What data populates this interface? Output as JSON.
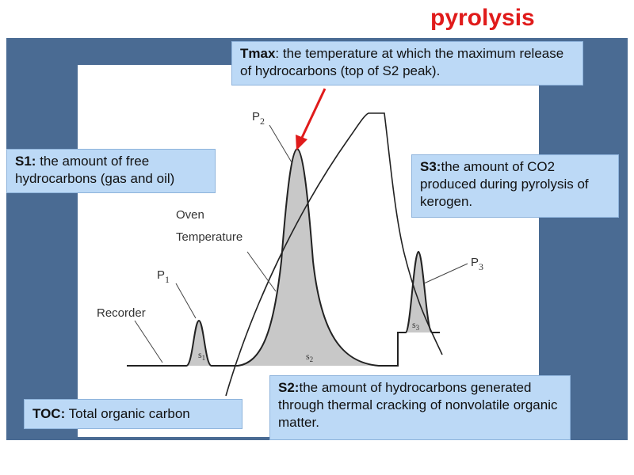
{
  "title": "pyrolysis",
  "boxes": {
    "tmax": {
      "term": "Tmax",
      "text": ": the temperature at which the maximum release of hydrocarbons (top of S2 peak)."
    },
    "s1": {
      "term": "S1:",
      "text": " the amount of free hydrocarbons (gas and oil)"
    },
    "s3": {
      "term": "S3:",
      "text": "the amount of CO2 produced during pyrolysis of kerogen."
    },
    "toc": {
      "term": "TOC:",
      "text": " Total organic carbon"
    },
    "s2": {
      "term": "S2:",
      "text": "the amount of hydrocarbons generated through thermal cracking of nonvolatile organic matter."
    }
  },
  "diagram": {
    "oven_label": "Oven",
    "temperature_label": "Temperature",
    "recorder_label": "Recorder",
    "p1": "P",
    "p1_sub": "1",
    "p2": "P",
    "p2_sub": "2",
    "p3": "P",
    "p3_sub": "3",
    "s1_peak": "s",
    "s1_sub": "1",
    "s2_peak": "s",
    "s2_sub": "2",
    "s3_peak": "s",
    "s3_sub": "3"
  },
  "colors": {
    "title": "#e01b1b",
    "panel": "#4a6b93",
    "box": "#bcd9f6",
    "arrow": "#e01b1b",
    "peak_fill": "#c8c8c8"
  }
}
